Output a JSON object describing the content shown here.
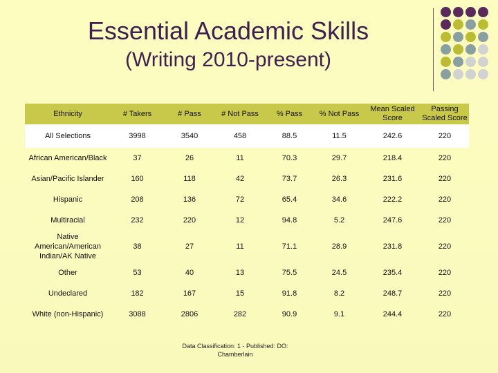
{
  "title": "Essential Academic Skills",
  "subtitle": "(Writing 2010-present)",
  "table": {
    "headers": [
      "Ethnicity",
      "# Takers",
      "# Pass",
      "# Not Pass",
      "% Pass",
      "% Not Pass",
      "Mean Scaled Score",
      "Passing Scaled Score"
    ],
    "rows": [
      [
        "All Selections",
        "3998",
        "3540",
        "458",
        "88.5",
        "11.5",
        "242.6",
        "220"
      ],
      [
        "African American/Black",
        "37",
        "26",
        "11",
        "70.3",
        "29.7",
        "218.4",
        "220"
      ],
      [
        "Asian/Pacific Islander",
        "160",
        "118",
        "42",
        "73.7",
        "26.3",
        "231.6",
        "220"
      ],
      [
        "Hispanic",
        "208",
        "136",
        "72",
        "65.4",
        "34.6",
        "222.2",
        "220"
      ],
      [
        "Multiracial",
        "232",
        "220",
        "12",
        "94.8",
        "5.2",
        "247.6",
        "220"
      ],
      [
        "Native American/American Indian/AK Native",
        "38",
        "27",
        "11",
        "71.1",
        "28.9",
        "231.8",
        "220"
      ],
      [
        "Other",
        "53",
        "40",
        "13",
        "75.5",
        "24.5",
        "235.4",
        "220"
      ],
      [
        "Undeclared",
        "182",
        "167",
        "15",
        "91.8",
        "8.2",
        "248.7",
        "220"
      ],
      [
        "White (non-Hispanic)",
        "3088",
        "2806",
        "282",
        "90.9",
        "9.1",
        "244.4",
        "220"
      ]
    ]
  },
  "footnote": "Data Classification: 1 - Published: DO: Chamberlain",
  "colors": {
    "title": "#3f1f4f",
    "header_band": "#c8c84a",
    "dot_purple": "#5c2a5a",
    "dot_olive": "#bcbc34",
    "dot_teal": "#8aa0a0",
    "dot_gray": "#d2d2d2"
  }
}
